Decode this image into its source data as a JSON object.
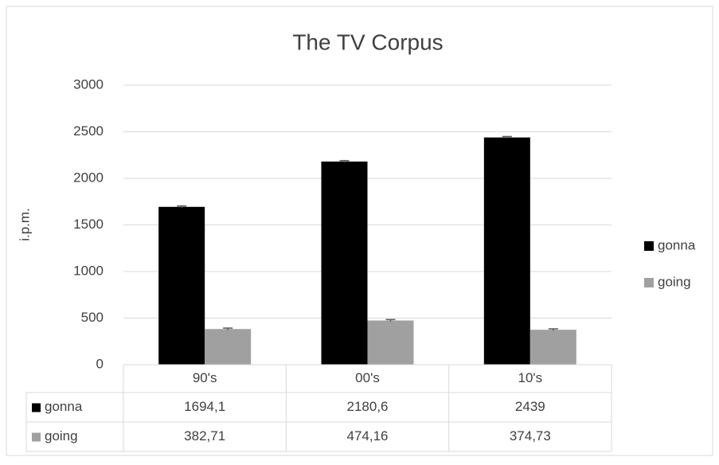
{
  "chart_data": {
    "type": "bar",
    "title": "The TV Corpus",
    "y_label": "i.p.m.",
    "categories": [
      "90's",
      "00's",
      "10's"
    ],
    "series": [
      {
        "name": "gonna",
        "color": "#000000",
        "values": [
          1694.1,
          2180.6,
          2439
        ],
        "value_labels": [
          "1694,1",
          "2180,6",
          "2439"
        ],
        "errors": [
          10,
          10,
          10
        ]
      },
      {
        "name": "going",
        "color": "#a0a0a0",
        "values": [
          382.71,
          474.16,
          374.73
        ],
        "value_labels": [
          "382,71",
          "474,16",
          "374,73"
        ],
        "errors": [
          10,
          10,
          10
        ]
      }
    ],
    "ylim": [
      0,
      3000
    ],
    "yticks": [
      0,
      500,
      1000,
      1500,
      2000,
      2500,
      3000
    ],
    "grid": true,
    "legend": "right",
    "data_table": true
  }
}
